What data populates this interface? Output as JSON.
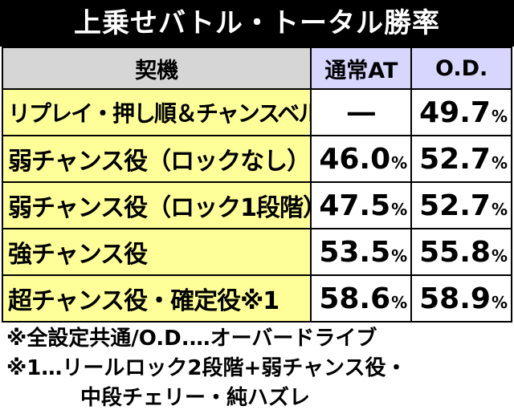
{
  "title": "上乗せバトル・トータル勝率",
  "table": {
    "headers": {
      "label": "契機",
      "at": "通常AT",
      "od": "O.D."
    },
    "rows": [
      {
        "label": "リプレイ・押し順＆チャンスベル",
        "at": "―",
        "at_pct": "",
        "od": "49.7",
        "od_pct": "%"
      },
      {
        "label": "弱チャンス役（ロックなし）",
        "at": "46.0",
        "at_pct": "%",
        "od": "52.7",
        "od_pct": "%"
      },
      {
        "label": "弱チャンス役（ロック1段階）",
        "at": "47.5",
        "at_pct": "%",
        "od": "52.7",
        "od_pct": "%"
      },
      {
        "label": "強チャンス役",
        "at": "53.5",
        "at_pct": "%",
        "od": "55.8",
        "od_pct": "%"
      },
      {
        "label": "超チャンス役・確定役※1",
        "at": "58.6",
        "at_pct": "%",
        "od": "58.9",
        "od_pct": "%"
      }
    ]
  },
  "notes": [
    "※全設定共通/O.D.…オーバードライブ",
    "※1…リールロック2段階+弱チャンス役・",
    "中段チェリー・純ハズレ"
  ]
}
